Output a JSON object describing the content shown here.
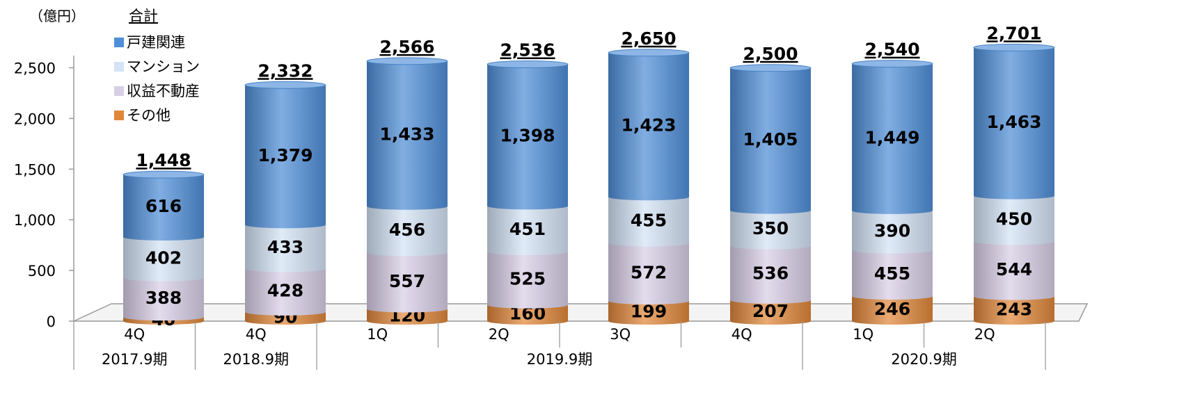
{
  "chart_data": {
    "type": "bar",
    "stacked": true,
    "style": "3d-cylinder",
    "unit_label": "（億円）",
    "legend_title": "合計",
    "legend_position": "top-left",
    "ylim": [
      0,
      2700
    ],
    "yticks": [
      "0",
      "500",
      "1,000",
      "1,500",
      "2,000",
      "2,500"
    ],
    "ytick_values": [
      0,
      500,
      1000,
      1500,
      2000,
      2500
    ],
    "categories": [
      "4Q",
      "4Q",
      "1Q",
      "2Q",
      "3Q",
      "4Q",
      "1Q",
      "2Q"
    ],
    "groups": [
      {
        "label": "2017.9期",
        "start": 0,
        "end": 0
      },
      {
        "label": "2018.9期",
        "start": 1,
        "end": 1
      },
      {
        "label": "2019.9期",
        "start": 2,
        "end": 5
      },
      {
        "label": "2020.9期",
        "start": 6,
        "end": 7
      }
    ],
    "totals": [
      1448,
      2332,
      2566,
      2536,
      2650,
      2500,
      2540,
      2701
    ],
    "total_labels": [
      "1,448",
      "2,332",
      "2,566",
      "2,536",
      "2,650",
      "2,500",
      "2,540",
      "2,701"
    ],
    "series": [
      {
        "name": "その他",
        "color": "#e0873a",
        "values": [
          40,
          90,
          120,
          160,
          199,
          207,
          246,
          243
        ],
        "labels": [
          "40",
          "90",
          "120",
          "160",
          "199",
          "207",
          "246",
          "243"
        ]
      },
      {
        "name": "収益不動産",
        "color": "#d8cfe6",
        "values": [
          388,
          428,
          557,
          525,
          572,
          536,
          455,
          544
        ],
        "labels": [
          "388",
          "428",
          "557",
          "525",
          "572",
          "536",
          "455",
          "544"
        ]
      },
      {
        "name": "マンション",
        "color": "#d4e3f5",
        "values": [
          402,
          433,
          456,
          451,
          455,
          350,
          390,
          450
        ],
        "labels": [
          "402",
          "433",
          "456",
          "451",
          "455",
          "350",
          "390",
          "450"
        ]
      },
      {
        "name": "戸建関連",
        "color": "#4f8fd8",
        "values": [
          616,
          1379,
          1433,
          1398,
          1423,
          1405,
          1449,
          1463
        ],
        "labels": [
          "616",
          "1,379",
          "1,433",
          "1,398",
          "1,423",
          "1,405",
          "1,449",
          "1,463"
        ]
      }
    ],
    "legend_order": [
      "戸建関連",
      "マンション",
      "収益不動産",
      "その他"
    ]
  }
}
